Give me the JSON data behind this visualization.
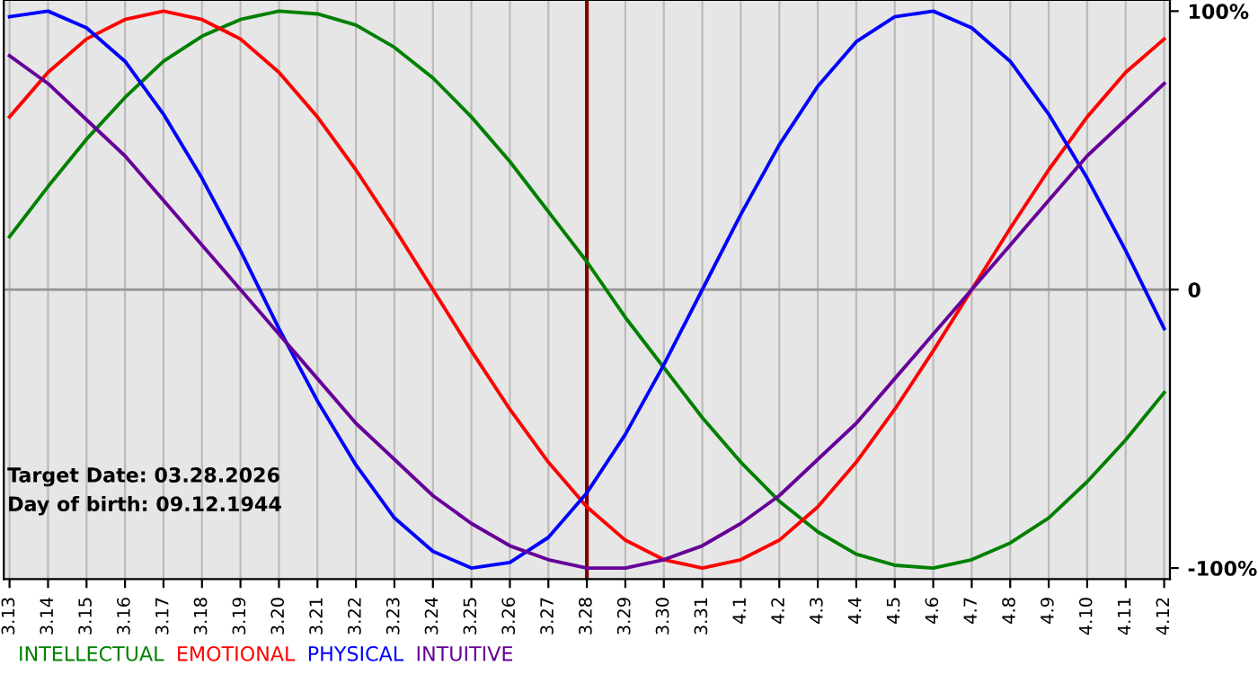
{
  "chart_data": {
    "type": "line",
    "categories": [
      "3.13",
      "3.14",
      "3.15",
      "3.16",
      "3.17",
      "3.18",
      "3.19",
      "3.20",
      "3.21",
      "3.22",
      "3.23",
      "3.24",
      "3.25",
      "3.26",
      "3.27",
      "3.28",
      "3.29",
      "3.30",
      "3.31",
      "4.1",
      "4.2",
      "4.3",
      "4.4",
      "4.5",
      "4.6",
      "4.7",
      "4.8",
      "4.9",
      "4.10",
      "4.11",
      "4.12"
    ],
    "series": [
      {
        "name": "INTELLECTUAL",
        "color": "#008000",
        "values": [
          19,
          37,
          54,
          69,
          82,
          91,
          97,
          100,
          99,
          95,
          87,
          76,
          62,
          46,
          28,
          10,
          -10,
          -28,
          -46,
          -62,
          -76,
          -87,
          -95,
          -99,
          -100,
          -97,
          -91,
          -82,
          -69,
          -54,
          -37
        ]
      },
      {
        "name": "EMOTIONAL",
        "color": "#ff0000",
        "values": [
          62,
          78,
          90,
          97,
          100,
          97,
          90,
          78,
          62,
          43,
          22,
          0,
          -22,
          -43,
          -62,
          -78,
          -90,
          -97,
          -100,
          -97,
          -90,
          -78,
          -62,
          -43,
          -22,
          0,
          22,
          43,
          62,
          78,
          90
        ]
      },
      {
        "name": "PHYSICAL",
        "color": "#0000ff",
        "values": [
          98,
          100,
          94,
          82,
          63,
          40,
          14,
          -14,
          -40,
          -63,
          -82,
          -94,
          -100,
          -98,
          -89,
          -73,
          -52,
          -27,
          0,
          27,
          52,
          73,
          89,
          98,
          100,
          94,
          82,
          63,
          40,
          14,
          -14
        ]
      },
      {
        "name": "INTUITIVE",
        "color": "#660099",
        "values": [
          84,
          74,
          61,
          48,
          32,
          16,
          0,
          -16,
          -32,
          -48,
          -61,
          -74,
          -84,
          -92,
          -97,
          -100,
          -100,
          -97,
          -92,
          -84,
          -74,
          -61,
          -48,
          -32,
          -16,
          0,
          16,
          32,
          48,
          61,
          74
        ]
      }
    ],
    "ylim": [
      -104,
      104
    ],
    "yticks": [
      {
        "value": 100,
        "label": "100%"
      },
      0,
      {
        "value": -100,
        "label": "-100%"
      }
    ],
    "grid": "x",
    "ref_lines": [
      {
        "axis": "x",
        "value": "3.28",
        "color": "#800000"
      },
      {
        "axis": "y",
        "value": 0,
        "color": "#999999"
      }
    ],
    "annotations": [
      "Target Date: 03.28.2026",
      "Day of birth: 09.12.1944"
    ],
    "legend": "bottom left",
    "marker": "none",
    "line_style": "solid"
  }
}
